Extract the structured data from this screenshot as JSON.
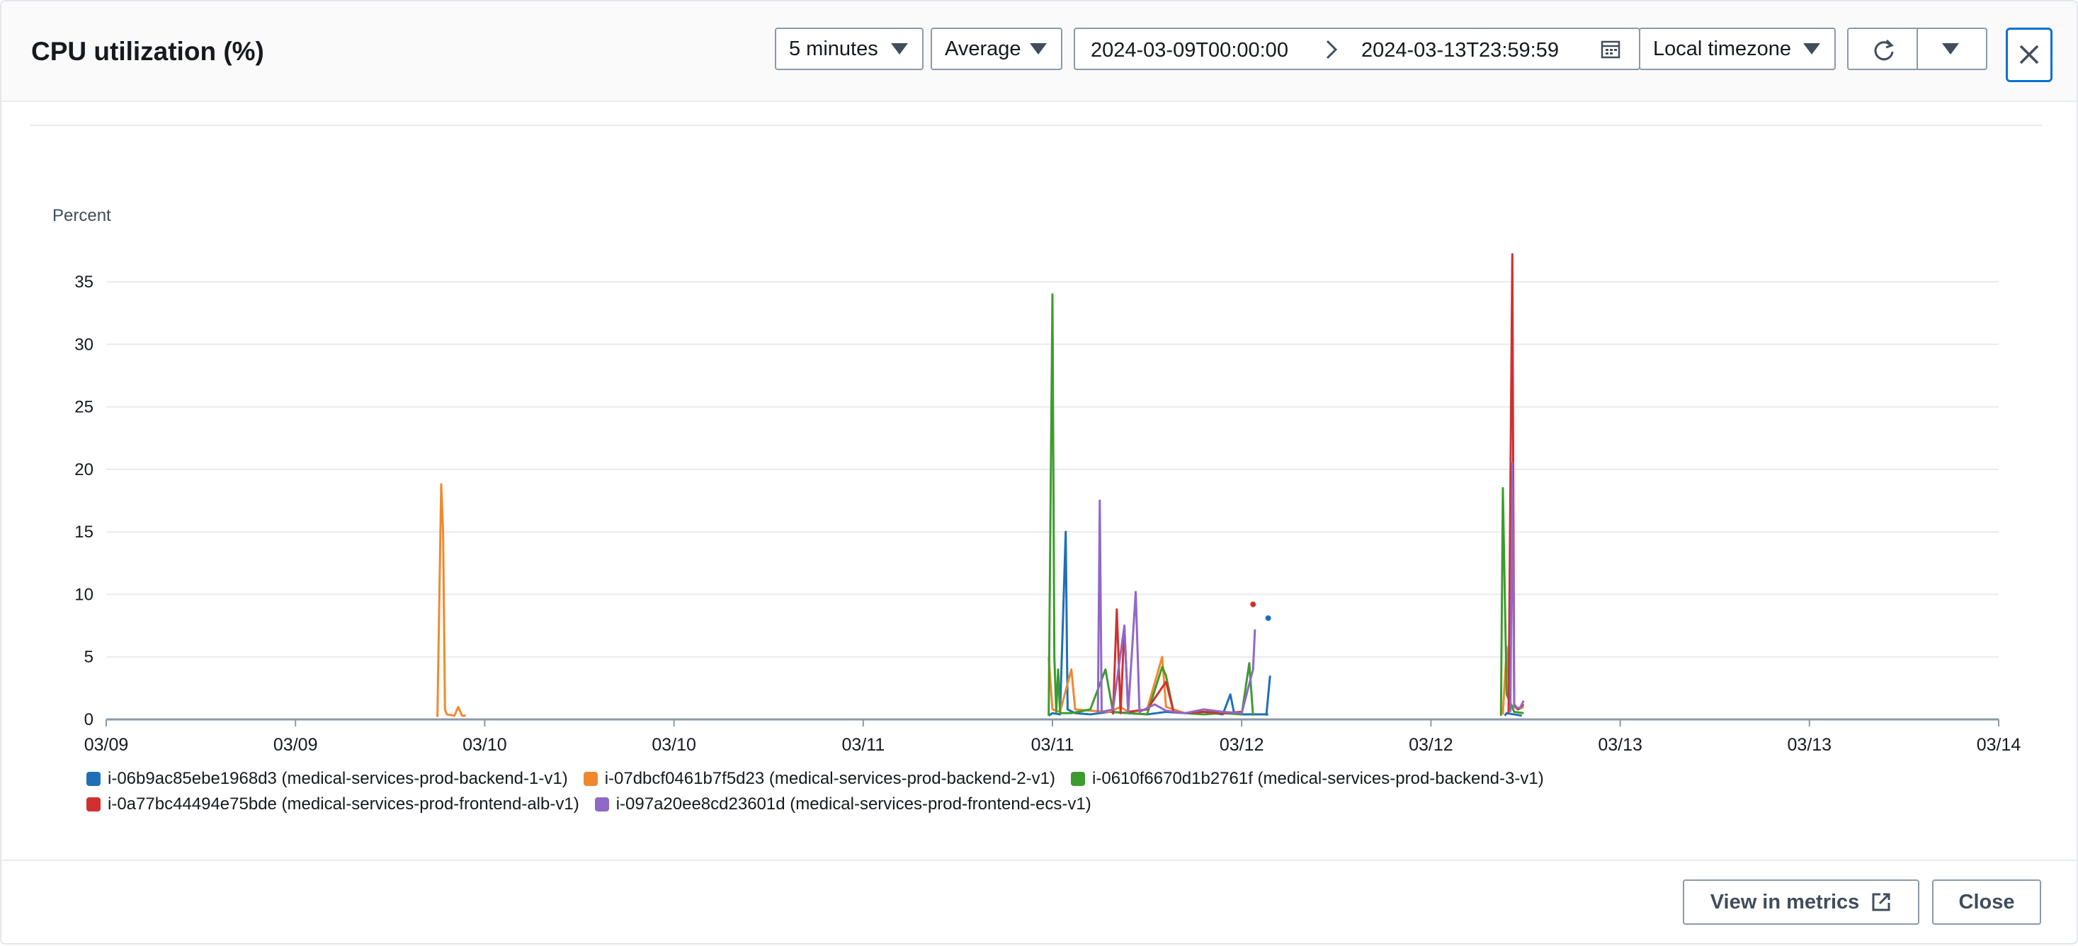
{
  "modal": {
    "title": "CPU utilization (%)",
    "period": "5 minutes",
    "statistic": "Average",
    "range_start": "2024-03-09T00:00:00",
    "range_end": "2024-03-13T23:59:59",
    "timezone": "Local timezone",
    "view_in_metrics": "View in metrics",
    "close": "Close"
  },
  "colors": {
    "blue": "#1f6fb8",
    "orange": "#f0892e",
    "green": "#3d9c2e",
    "red": "#d13030",
    "purple": "#9068c8",
    "accent": "#0972d3"
  },
  "chart_data": {
    "type": "line",
    "ylabel": "Percent",
    "xlabel": "",
    "xlim": [
      0,
      5
    ],
    "ylim": [
      0,
      37
    ],
    "yticks": [
      0,
      5,
      10,
      15,
      20,
      25,
      30,
      35
    ],
    "xticks": [
      {
        "label": "03/09",
        "x": 0
      },
      {
        "label": "03/09",
        "x": 0.5
      },
      {
        "label": "03/10",
        "x": 1
      },
      {
        "label": "03/10",
        "x": 1.5
      },
      {
        "label": "03/11",
        "x": 2
      },
      {
        "label": "03/11",
        "x": 2.5
      },
      {
        "label": "03/12",
        "x": 3
      },
      {
        "label": "03/12",
        "x": 3.5
      },
      {
        "label": "03/13",
        "x": 4
      },
      {
        "label": "03/13",
        "x": 4.5
      },
      {
        "label": "03/14",
        "x": 5
      }
    ],
    "grid": true,
    "series": [
      {
        "name": "i-06b9ac85ebe1968d3 (medical-services-prod-backend-1-v1)",
        "color": "#1f6fb8",
        "points": [
          [
            2.49,
            0.3
          ],
          [
            2.5,
            0.5
          ],
          [
            2.52,
            0.4
          ],
          [
            2.535,
            15
          ],
          [
            2.54,
            0.8
          ],
          [
            2.56,
            0.5
          ],
          [
            2.6,
            0.4
          ],
          [
            2.65,
            0.6
          ],
          [
            2.7,
            0.5
          ],
          [
            2.75,
            0.4
          ],
          [
            2.8,
            0.6
          ],
          [
            2.85,
            0.5
          ],
          [
            2.9,
            0.6
          ],
          [
            2.95,
            0.4
          ],
          [
            2.97,
            2.0
          ],
          [
            2.98,
            0.5
          ],
          [
            3.0,
            0.4
          ],
          [
            3.07,
            0.4
          ]
        ],
        "extra_segments": [
          [
            [
              3.065,
              0.3
            ],
            [
              3.075,
              3.5
            ]
          ]
        ],
        "dots": [
          [
            3.07,
            8.1
          ]
        ],
        "spike2": [
          [
            3.695,
            0.3
          ],
          [
            3.7,
            0.5
          ],
          [
            3.72,
            0.4
          ],
          [
            3.74,
            0.3
          ]
        ]
      },
      {
        "name": "i-07dbcf0461b7f5d23 (medical-services-prod-backend-2-v1)",
        "color": "#f0892e",
        "points": [
          [
            0.875,
            0.2
          ],
          [
            0.885,
            18.8
          ],
          [
            0.89,
            15.0
          ],
          [
            0.895,
            0.8
          ],
          [
            0.9,
            0.4
          ],
          [
            0.92,
            0.3
          ],
          [
            0.93,
            1.0
          ],
          [
            0.94,
            0.3
          ],
          [
            0.95,
            0.3
          ]
        ],
        "segment2": [
          [
            2.49,
            5.0
          ],
          [
            2.5,
            0.8
          ],
          [
            2.52,
            0.6
          ],
          [
            2.55,
            4.0
          ],
          [
            2.56,
            0.8
          ],
          [
            2.6,
            0.7
          ],
          [
            2.65,
            0.6
          ],
          [
            2.68,
            1.0
          ],
          [
            2.7,
            0.6
          ],
          [
            2.75,
            0.8
          ],
          [
            2.79,
            5.0
          ],
          [
            2.8,
            1.0
          ],
          [
            2.85,
            0.5
          ],
          [
            2.9,
            0.6
          ],
          [
            2.95,
            0.5
          ],
          [
            3.0,
            0.5
          ]
        ],
        "segment3": [
          [
            3.69,
            0.4
          ],
          [
            3.7,
            5.8
          ],
          [
            3.71,
            1.2
          ],
          [
            3.73,
            0.8
          ],
          [
            3.745,
            1.0
          ]
        ]
      },
      {
        "name": "i-0610f6670d1b2761f (medical-services-prod-backend-3-v1)",
        "color": "#3d9c2e",
        "points": [
          [
            2.49,
            0.3
          ],
          [
            2.5,
            34
          ],
          [
            2.505,
            5.0
          ],
          [
            2.51,
            0.6
          ],
          [
            2.515,
            4.0
          ],
          [
            2.52,
            0.5
          ],
          [
            2.55,
            0.5
          ],
          [
            2.6,
            0.8
          ],
          [
            2.64,
            4.0
          ],
          [
            2.66,
            0.6
          ],
          [
            2.7,
            0.5
          ],
          [
            2.75,
            0.4
          ],
          [
            2.79,
            4.2
          ],
          [
            2.8,
            3.5
          ],
          [
            2.82,
            0.6
          ],
          [
            2.85,
            0.5
          ],
          [
            2.9,
            0.4
          ],
          [
            2.95,
            0.5
          ],
          [
            3.0,
            0.4
          ],
          [
            3.02,
            4.5
          ],
          [
            3.03,
            0.3
          ]
        ],
        "segment2": [
          [
            3.685,
            0.3
          ],
          [
            3.69,
            18.5
          ],
          [
            3.7,
            2.0
          ],
          [
            3.72,
            0.6
          ],
          [
            3.745,
            0.5
          ]
        ]
      },
      {
        "name": "i-0a77bc44494e75bde (medical-services-prod-frontend-alb-v1)",
        "color": "#d13030",
        "points": [
          [
            2.66,
            0.4
          ],
          [
            2.67,
            8.8
          ],
          [
            2.68,
            0.5
          ],
          [
            2.69,
            7.5
          ],
          [
            2.7,
            0.6
          ],
          [
            2.75,
            0.8
          ],
          [
            2.8,
            3.0
          ],
          [
            2.82,
            0.6
          ],
          [
            2.85,
            0.5
          ],
          [
            2.9,
            0.6
          ],
          [
            2.95,
            0.5
          ],
          [
            3.0,
            0.6
          ]
        ],
        "dots": [
          [
            3.03,
            9.2
          ]
        ],
        "segment2": [
          [
            3.705,
            0.5
          ],
          [
            3.715,
            37.2
          ],
          [
            3.72,
            1.2
          ],
          [
            3.73,
            0.8
          ],
          [
            3.745,
            1.2
          ]
        ]
      },
      {
        "name": "i-097a20ee8cd23601d (medical-services-prod-frontend-ecs-v1)",
        "color": "#9068c8",
        "points": [
          [
            2.62,
            0.5
          ],
          [
            2.625,
            17.5
          ],
          [
            2.63,
            0.6
          ],
          [
            2.66,
            0.8
          ],
          [
            2.69,
            7.5
          ],
          [
            2.7,
            0.6
          ],
          [
            2.72,
            10.2
          ],
          [
            2.73,
            0.6
          ],
          [
            2.77,
            1.2
          ],
          [
            2.8,
            0.7
          ],
          [
            2.85,
            0.5
          ],
          [
            2.9,
            0.8
          ],
          [
            2.95,
            0.6
          ],
          [
            3.0,
            0.5
          ],
          [
            3.03,
            4.0
          ],
          [
            3.035,
            7.2
          ]
        ],
        "segment2": [
          [
            3.71,
            0.6
          ],
          [
            3.715,
            20.5
          ],
          [
            3.72,
            1.0
          ],
          [
            3.735,
            0.9
          ],
          [
            3.745,
            1.5
          ]
        ]
      }
    ]
  }
}
